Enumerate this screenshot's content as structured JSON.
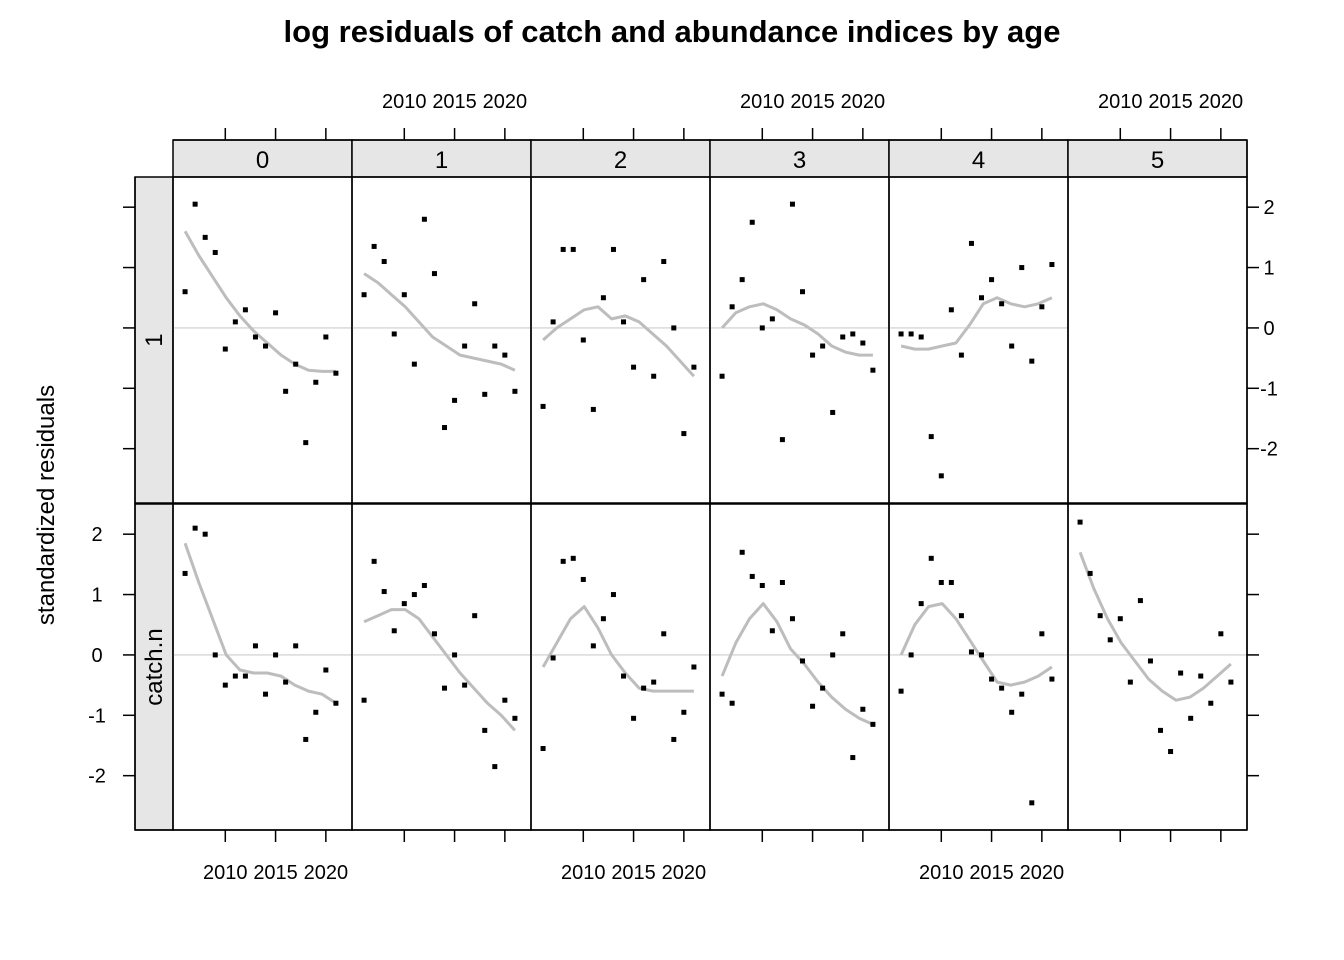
{
  "chart_data": {
    "type": "scatter",
    "title": "log residuals of catch and abundance indices by age",
    "ylabel": "standardized residuals",
    "xlabel": "",
    "panel_variable": "age",
    "ages": [
      "0",
      "1",
      "2",
      "3",
      "4",
      "5"
    ],
    "index_labels": [
      "1",
      "catch.n"
    ],
    "ylim": [
      -2.9,
      2.5
    ],
    "y_ticks": [
      -2,
      -1,
      0,
      1,
      2
    ],
    "x_ticks": [
      2010,
      2015,
      2020
    ],
    "xlim": [
      2004.8,
      2022.6
    ],
    "reference_line": 0,
    "smoother": "loess",
    "colors": {
      "points": "#000000",
      "smoother": "#bdbdbd",
      "zero_line": "#cccccc",
      "strip": "#e6e6e6",
      "frame": "#000000"
    },
    "rows": [
      {
        "name": "1",
        "panels": [
          {
            "age": "0",
            "x": [
              2006,
              2007,
              2008,
              2009,
              2010,
              2011,
              2012,
              2013,
              2014,
              2015,
              2016,
              2017,
              2018,
              2019,
              2020,
              2021
            ],
            "y": [
              0.6,
              2.05,
              1.5,
              1.25,
              -0.35,
              0.1,
              0.3,
              -0.15,
              -0.3,
              0.25,
              -1.05,
              -0.6,
              -1.9,
              -0.9,
              -0.15,
              -0.75
            ],
            "smooth": [
              1.6,
              1.2,
              0.85,
              0.5,
              0.2,
              -0.05,
              -0.25,
              -0.45,
              -0.6,
              -0.7,
              -0.72,
              -0.72
            ]
          },
          {
            "age": "1",
            "x": [
              2006,
              2007,
              2008,
              2009,
              2010,
              2011,
              2012,
              2013,
              2014,
              2015,
              2016,
              2017,
              2018,
              2019,
              2020,
              2021
            ],
            "y": [
              0.55,
              1.35,
              1.1,
              -0.1,
              0.55,
              -0.6,
              1.8,
              0.9,
              -1.65,
              -1.2,
              -0.3,
              0.4,
              -1.1,
              -0.3,
              -0.45,
              -1.05
            ],
            "smooth": [
              0.9,
              0.75,
              0.55,
              0.35,
              0.1,
              -0.15,
              -0.3,
              -0.45,
              -0.5,
              -0.55,
              -0.6,
              -0.7
            ]
          },
          {
            "age": "2",
            "x": [
              2006,
              2007,
              2008,
              2009,
              2010,
              2011,
              2012,
              2013,
              2014,
              2015,
              2016,
              2017,
              2018,
              2019,
              2020,
              2021
            ],
            "y": [
              -1.3,
              0.1,
              1.3,
              1.3,
              -0.2,
              -1.35,
              0.5,
              1.3,
              0.1,
              -0.65,
              0.8,
              -0.8,
              1.1,
              0.0,
              -1.75,
              -0.65
            ],
            "smooth": [
              -0.2,
              0.0,
              0.15,
              0.3,
              0.35,
              0.15,
              0.2,
              0.1,
              -0.1,
              -0.3,
              -0.55,
              -0.8
            ]
          },
          {
            "age": "3",
            "x": [
              2006,
              2007,
              2008,
              2009,
              2010,
              2011,
              2012,
              2013,
              2014,
              2015,
              2016,
              2017,
              2018,
              2019,
              2020,
              2021
            ],
            "y": [
              -0.8,
              0.35,
              0.8,
              1.75,
              0.0,
              0.15,
              -1.85,
              2.05,
              0.6,
              -0.45,
              -0.3,
              -1.4,
              -0.15,
              -0.1,
              -0.25,
              -0.7
            ],
            "smooth": [
              0.0,
              0.25,
              0.35,
              0.4,
              0.3,
              0.15,
              0.05,
              -0.1,
              -0.3,
              -0.4,
              -0.45,
              -0.45
            ]
          },
          {
            "age": "4",
            "x": [
              2006,
              2007,
              2008,
              2009,
              2010,
              2011,
              2012,
              2013,
              2014,
              2015,
              2016,
              2017,
              2018,
              2019,
              2020,
              2021
            ],
            "y": [
              -0.1,
              -0.1,
              -0.15,
              -1.8,
              -2.45,
              0.3,
              -0.45,
              1.4,
              0.5,
              0.8,
              0.4,
              -0.3,
              1.0,
              -0.55,
              0.35,
              1.05
            ],
            "smooth": [
              -0.3,
              -0.35,
              -0.35,
              -0.3,
              -0.25,
              0.05,
              0.4,
              0.5,
              0.4,
              0.35,
              0.4,
              0.5
            ]
          },
          {
            "age": "5",
            "x": [],
            "y": [],
            "smooth": []
          }
        ]
      },
      {
        "name": "catch.n",
        "panels": [
          {
            "age": "0",
            "x": [
              2006,
              2007,
              2008,
              2009,
              2010,
              2011,
              2012,
              2013,
              2014,
              2015,
              2016,
              2017,
              2018,
              2019,
              2020,
              2021
            ],
            "y": [
              1.35,
              2.1,
              2.0,
              0.0,
              -0.5,
              -0.35,
              -0.35,
              0.15,
              -0.65,
              0.0,
              -0.45,
              0.15,
              -1.4,
              -0.95,
              -0.25,
              -0.8
            ],
            "smooth": [
              1.85,
              1.2,
              0.6,
              0.0,
              -0.25,
              -0.3,
              -0.3,
              -0.35,
              -0.5,
              -0.6,
              -0.65,
              -0.8
            ]
          },
          {
            "age": "1",
            "x": [
              2006,
              2007,
              2008,
              2009,
              2010,
              2011,
              2012,
              2013,
              2014,
              2015,
              2016,
              2017,
              2018,
              2019,
              2020,
              2021
            ],
            "y": [
              -0.75,
              1.55,
              1.05,
              0.4,
              0.85,
              1.0,
              1.15,
              0.35,
              -0.55,
              0.0,
              -0.5,
              0.65,
              -1.25,
              -1.85,
              -0.75,
              -1.05
            ],
            "smooth": [
              0.55,
              0.65,
              0.75,
              0.75,
              0.6,
              0.3,
              0.0,
              -0.3,
              -0.55,
              -0.8,
              -1.0,
              -1.25
            ]
          },
          {
            "age": "2",
            "x": [
              2006,
              2007,
              2008,
              2009,
              2010,
              2011,
              2012,
              2013,
              2014,
              2015,
              2016,
              2017,
              2018,
              2019,
              2020,
              2021
            ],
            "y": [
              -1.55,
              -0.05,
              1.55,
              1.6,
              1.25,
              0.15,
              0.6,
              1.0,
              -0.35,
              -1.05,
              -0.55,
              -0.45,
              0.35,
              -1.4,
              -0.95,
              -0.2
            ],
            "smooth": [
              -0.2,
              0.2,
              0.6,
              0.8,
              0.45,
              0.0,
              -0.3,
              -0.55,
              -0.6,
              -0.6,
              -0.6,
              -0.6
            ]
          },
          {
            "age": "3",
            "x": [
              2006,
              2007,
              2008,
              2009,
              2010,
              2011,
              2012,
              2013,
              2014,
              2015,
              2016,
              2017,
              2018,
              2019,
              2020,
              2021
            ],
            "y": [
              -0.65,
              -0.8,
              1.7,
              1.3,
              1.15,
              0.4,
              1.2,
              0.6,
              -0.1,
              -0.85,
              -0.55,
              0.0,
              0.35,
              -1.7,
              -0.9,
              -1.15
            ],
            "smooth": [
              -0.35,
              0.2,
              0.6,
              0.85,
              0.55,
              0.1,
              -0.15,
              -0.45,
              -0.7,
              -0.9,
              -1.05,
              -1.15
            ]
          },
          {
            "age": "4",
            "x": [
              2006,
              2007,
              2008,
              2009,
              2010,
              2011,
              2012,
              2013,
              2014,
              2015,
              2016,
              2017,
              2018,
              2019,
              2020,
              2021
            ],
            "y": [
              -0.6,
              0.0,
              0.85,
              1.6,
              1.2,
              1.2,
              0.65,
              0.05,
              0.0,
              -0.4,
              -0.55,
              -0.95,
              -0.65,
              -2.45,
              0.35,
              -0.4
            ],
            "smooth": [
              0.0,
              0.5,
              0.8,
              0.85,
              0.6,
              0.25,
              -0.1,
              -0.45,
              -0.5,
              -0.45,
              -0.35,
              -0.2
            ]
          },
          {
            "age": "5",
            "x": [
              2006,
              2007,
              2008,
              2009,
              2010,
              2011,
              2012,
              2013,
              2014,
              2015,
              2016,
              2017,
              2018,
              2019,
              2020,
              2021
            ],
            "y": [
              2.2,
              1.35,
              0.65,
              0.25,
              0.6,
              -0.45,
              0.9,
              -0.1,
              -1.25,
              -1.6,
              -0.3,
              -1.05,
              -0.35,
              -0.8,
              0.35,
              -0.45
            ],
            "smooth": [
              1.7,
              1.1,
              0.6,
              0.2,
              -0.1,
              -0.4,
              -0.6,
              -0.75,
              -0.7,
              -0.55,
              -0.35,
              -0.15
            ]
          }
        ]
      }
    ]
  }
}
